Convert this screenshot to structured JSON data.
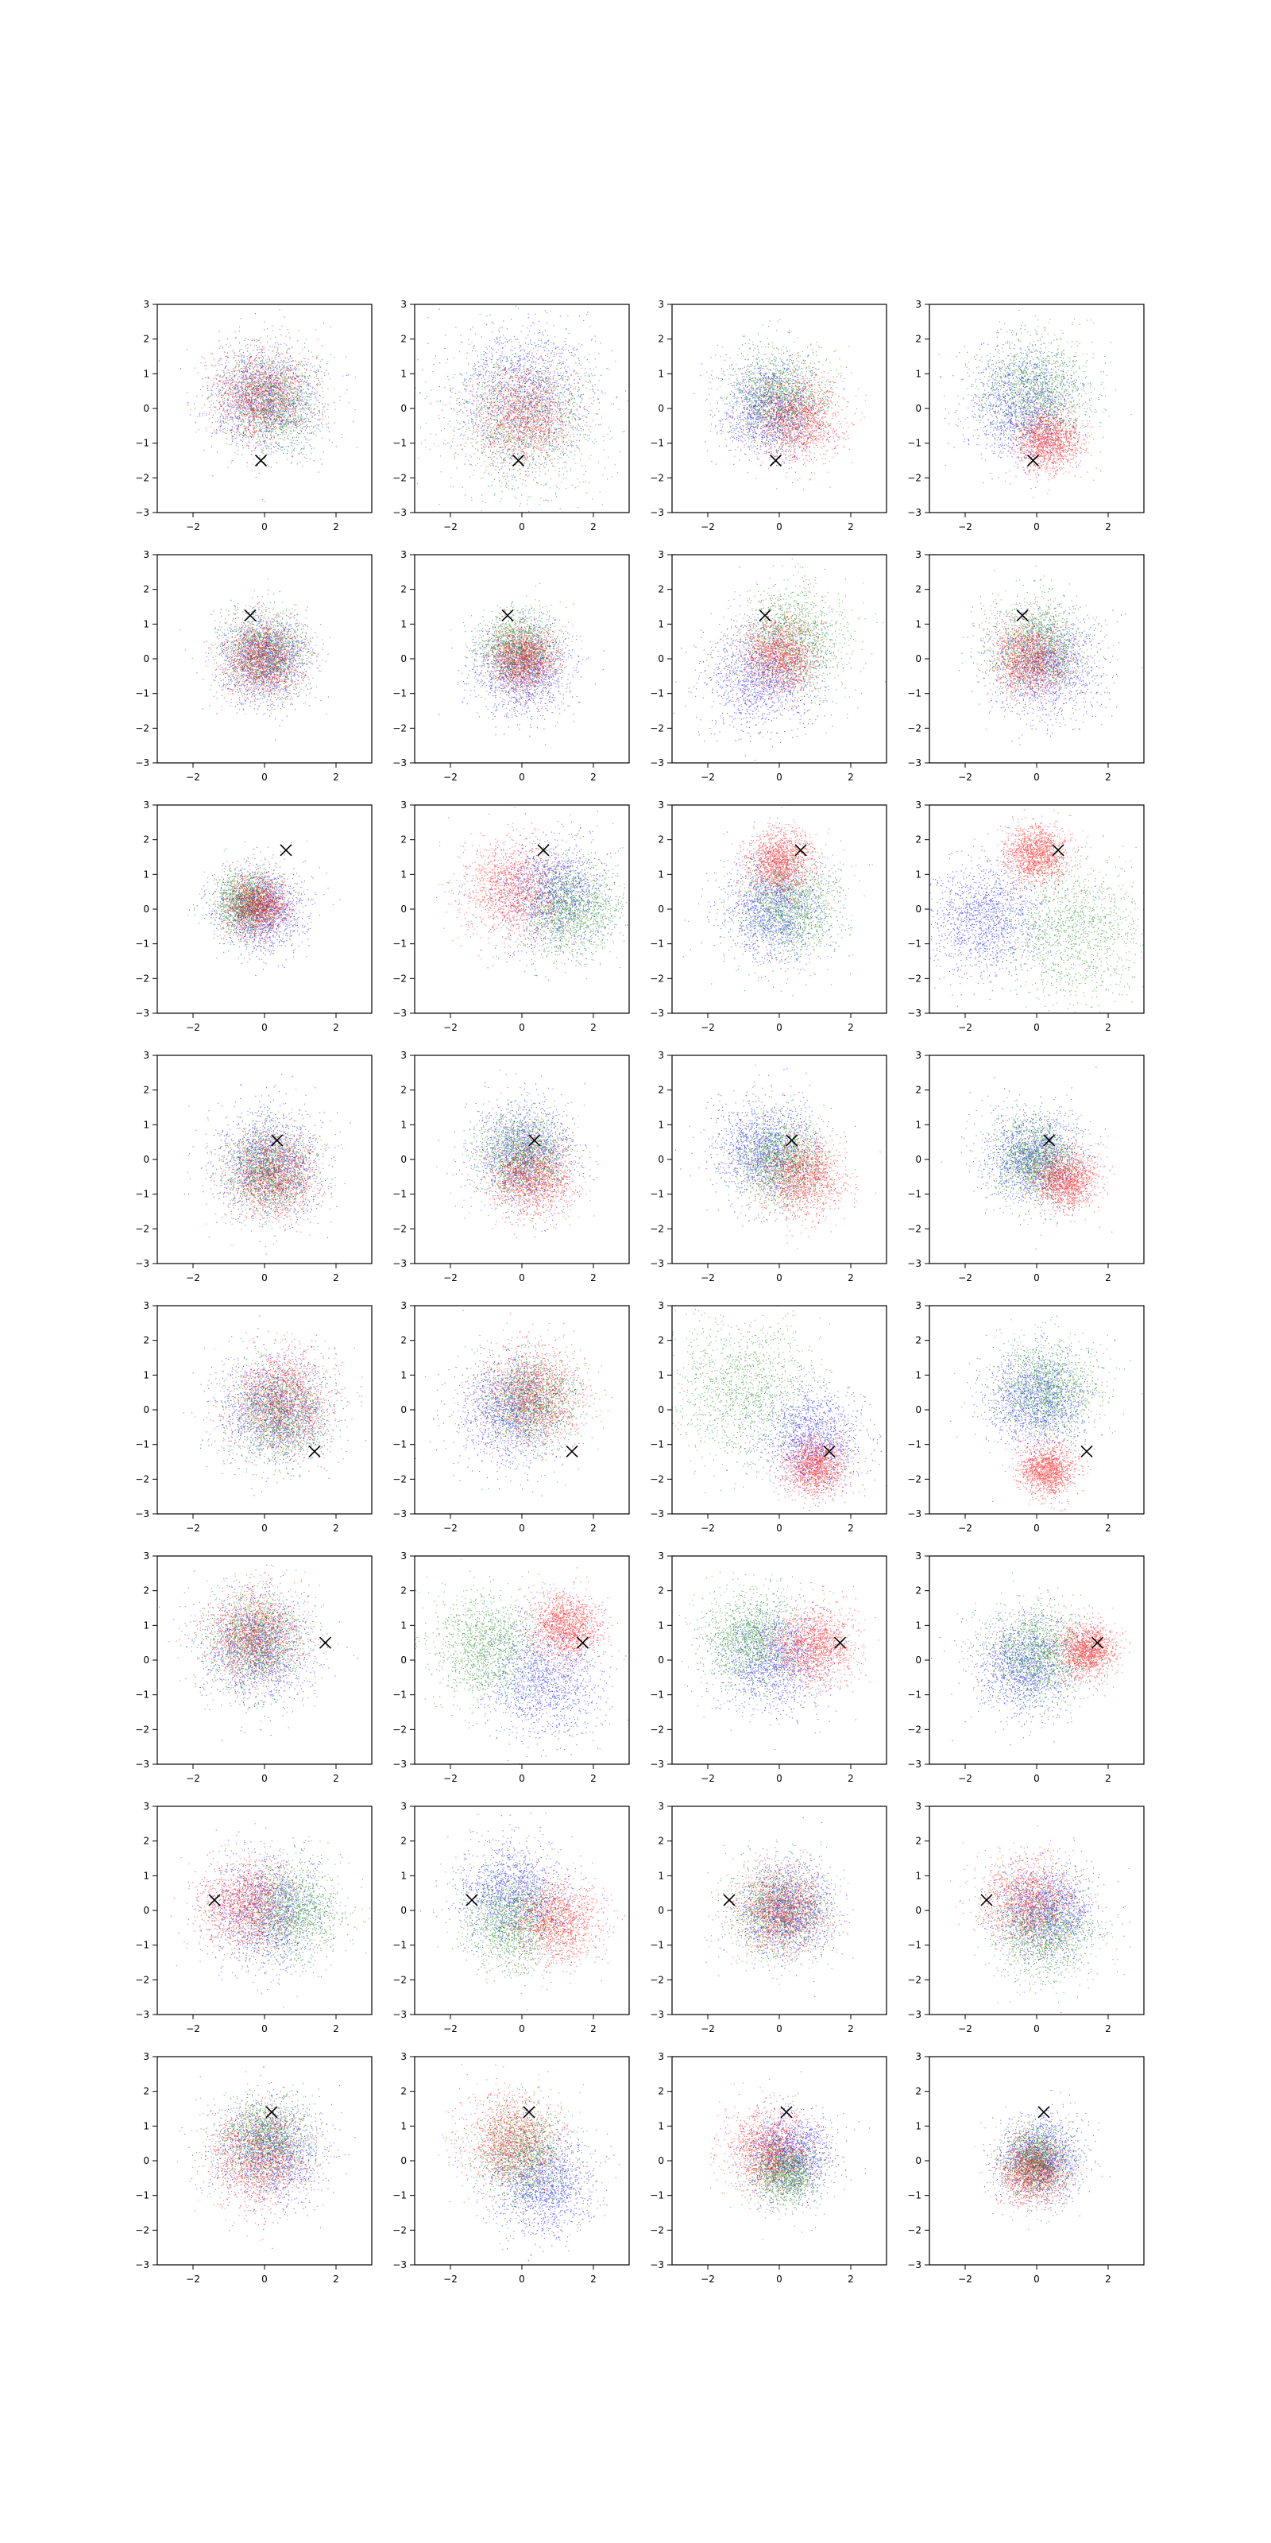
{
  "chart_data": {
    "type": "scatter",
    "layout": {
      "rows": 8,
      "cols": 4
    },
    "xlim": [
      -3,
      3
    ],
    "ylim": [
      -3,
      3
    ],
    "xticks": [
      -2,
      0,
      2
    ],
    "yticks": [
      -3,
      -2,
      -1,
      0,
      1,
      2,
      3
    ],
    "xtick_labels": [
      "−2",
      "0",
      "2"
    ],
    "ytick_labels": [
      "−3",
      "−2",
      "−1",
      "0",
      "1",
      "2",
      "3"
    ],
    "points_per_series": 1400,
    "series_colors": {
      "blue": "#0000ff",
      "green": "#008000",
      "red": "#ff0000"
    },
    "marker": {
      "symbol": "x",
      "color": "#000000"
    },
    "rows": [
      {
        "marker": [
          -0.1,
          -1.5
        ],
        "panels": [
          {
            "blue": [
              0.0,
              0.3,
              0.95
            ],
            "green": [
              0.2,
              0.2,
              0.9
            ],
            "red": [
              -0.1,
              0.4,
              0.85
            ]
          },
          {
            "blue": [
              0.0,
              0.5,
              1.25
            ],
            "green": [
              0.0,
              -0.4,
              1.35
            ],
            "red": [
              0.0,
              -0.2,
              0.9
            ]
          },
          {
            "blue": [
              -0.3,
              0.0,
              0.85
            ],
            "green": [
              0.0,
              0.4,
              0.9
            ],
            "red": [
              0.5,
              -0.3,
              0.8
            ]
          },
          {
            "blue": [
              -0.4,
              0.1,
              1.0
            ],
            "green": [
              0.0,
              0.5,
              1.0
            ],
            "red": [
              0.3,
              -0.9,
              0.6
            ]
          }
        ]
      },
      {
        "marker": [
          -0.4,
          1.25
        ],
        "panels": [
          {
            "blue": [
              0.0,
              0.0,
              0.8
            ],
            "green": [
              0.0,
              0.2,
              0.75
            ],
            "red": [
              -0.1,
              0.0,
              0.7
            ]
          },
          {
            "blue": [
              0.0,
              -0.3,
              0.85
            ],
            "green": [
              -0.1,
              0.3,
              0.7
            ],
            "red": [
              0.0,
              0.0,
              0.6
            ]
          },
          {
            "blue": [
              -0.5,
              -0.5,
              1.0
            ],
            "green": [
              0.4,
              0.6,
              0.95
            ],
            "red": [
              0.0,
              0.1,
              0.7
            ]
          },
          {
            "blue": [
              0.3,
              -0.2,
              0.95
            ],
            "green": [
              0.0,
              0.4,
              0.85
            ],
            "red": [
              -0.2,
              0.0,
              0.7
            ]
          }
        ]
      },
      {
        "marker": [
          0.6,
          1.7
        ],
        "panels": [
          {
            "blue": [
              -0.1,
              0.0,
              0.8
            ],
            "green": [
              -0.5,
              0.2,
              0.6
            ],
            "red": [
              -0.2,
              0.1,
              0.55
            ]
          },
          {
            "blue": [
              0.9,
              0.5,
              1.0
            ],
            "green": [
              1.4,
              0.0,
              0.85
            ],
            "red": [
              -0.3,
              0.6,
              0.9
            ]
          },
          {
            "blue": [
              -0.2,
              0.0,
              0.95
            ],
            "green": [
              0.3,
              0.1,
              0.9
            ],
            "red": [
              0.0,
              1.4,
              0.6
            ]
          },
          {
            "blue": [
              -1.5,
              -0.3,
              1.0
            ],
            "green": [
              1.0,
              -0.6,
              1.3
            ],
            "red": [
              0.0,
              1.6,
              0.55
            ]
          }
        ]
      },
      {
        "marker": [
          0.35,
          0.55
        ],
        "panels": [
          {
            "blue": [
              0.1,
              -0.1,
              0.95
            ],
            "green": [
              0.1,
              -0.3,
              0.8
            ],
            "red": [
              0.2,
              -0.5,
              0.8
            ]
          },
          {
            "blue": [
              0.0,
              0.2,
              0.9
            ],
            "green": [
              0.0,
              0.1,
              0.8
            ],
            "red": [
              0.3,
              -0.5,
              0.75
            ]
          },
          {
            "blue": [
              -0.4,
              0.3,
              0.9
            ],
            "green": [
              0.0,
              0.0,
              0.8
            ],
            "red": [
              0.6,
              -0.5,
              0.75
            ]
          },
          {
            "blue": [
              -0.1,
              0.1,
              0.85
            ],
            "green": [
              0.0,
              0.0,
              0.75
            ],
            "red": [
              0.8,
              -0.6,
              0.55
            ]
          }
        ]
      },
      {
        "marker": [
          1.4,
          -1.2
        ],
        "panels": [
          {
            "blue": [
              0.3,
              0.0,
              1.0
            ],
            "green": [
              0.4,
              -0.1,
              0.9
            ],
            "red": [
              0.5,
              0.3,
              0.9
            ]
          },
          {
            "blue": [
              -0.3,
              0.0,
              1.0
            ],
            "green": [
              0.2,
              0.3,
              0.9
            ],
            "red": [
              0.3,
              0.4,
              0.9
            ]
          },
          {
            "blue": [
              0.9,
              -0.8,
              0.9
            ],
            "green": [
              -1.0,
              0.6,
              1.3
            ],
            "red": [
              1.0,
              -1.6,
              0.55
            ]
          },
          {
            "blue": [
              0.0,
              0.3,
              0.9
            ],
            "green": [
              0.3,
              0.6,
              0.9
            ],
            "red": [
              0.3,
              -1.7,
              0.5
            ]
          }
        ]
      },
      {
        "marker": [
          1.7,
          0.5
        ],
        "panels": [
          {
            "blue": [
              -0.2,
              0.3,
              1.0
            ],
            "green": [
              -0.3,
              0.6,
              0.85
            ],
            "red": [
              -0.3,
              0.7,
              0.85
            ]
          },
          {
            "blue": [
              0.6,
              -0.6,
              1.05
            ],
            "green": [
              -1.0,
              0.4,
              0.95
            ],
            "red": [
              1.2,
              1.0,
              0.6
            ]
          },
          {
            "blue": [
              -0.2,
              0.0,
              0.95
            ],
            "green": [
              -0.8,
              0.6,
              0.9
            ],
            "red": [
              1.0,
              0.4,
              0.7
            ]
          },
          {
            "blue": [
              -0.3,
              -0.2,
              0.9
            ],
            "green": [
              0.0,
              0.2,
              0.9
            ],
            "red": [
              1.4,
              0.3,
              0.5
            ]
          }
        ]
      },
      {
        "marker": [
          -1.4,
          0.3
        ],
        "panels": [
          {
            "blue": [
              0.0,
              0.0,
              1.0
            ],
            "green": [
              0.8,
              0.0,
              0.9
            ],
            "red": [
              -0.5,
              0.2,
              0.85
            ]
          },
          {
            "blue": [
              -0.3,
              0.5,
              0.95
            ],
            "green": [
              -0.3,
              -0.3,
              0.85
            ],
            "red": [
              1.0,
              -0.3,
              0.75
            ]
          },
          {
            "blue": [
              0.2,
              0.0,
              0.85
            ],
            "green": [
              0.0,
              0.0,
              0.85
            ],
            "red": [
              0.0,
              0.0,
              0.8
            ]
          },
          {
            "blue": [
              0.3,
              0.0,
              0.85
            ],
            "green": [
              0.2,
              -0.6,
              0.9
            ],
            "red": [
              -0.3,
              0.3,
              0.8
            ]
          }
        ]
      },
      {
        "marker": [
          0.2,
          1.4
        ],
        "panels": [
          {
            "blue": [
              0.2,
              0.3,
              0.95
            ],
            "green": [
              0.0,
              0.6,
              0.8
            ],
            "red": [
              -0.2,
              0.1,
              0.9
            ]
          },
          {
            "blue": [
              0.6,
              -0.7,
              0.9
            ],
            "green": [
              0.0,
              0.2,
              0.85
            ],
            "red": [
              -0.3,
              0.6,
              0.85
            ]
          },
          {
            "blue": [
              0.3,
              0.2,
              0.75
            ],
            "green": [
              0.1,
              -0.3,
              0.6
            ],
            "red": [
              -0.3,
              0.3,
              0.75
            ]
          },
          {
            "blue": [
              0.1,
              0.1,
              0.75
            ],
            "green": [
              0.0,
              0.0,
              0.6
            ],
            "red": [
              -0.1,
              -0.3,
              0.6
            ]
          }
        ]
      }
    ]
  }
}
